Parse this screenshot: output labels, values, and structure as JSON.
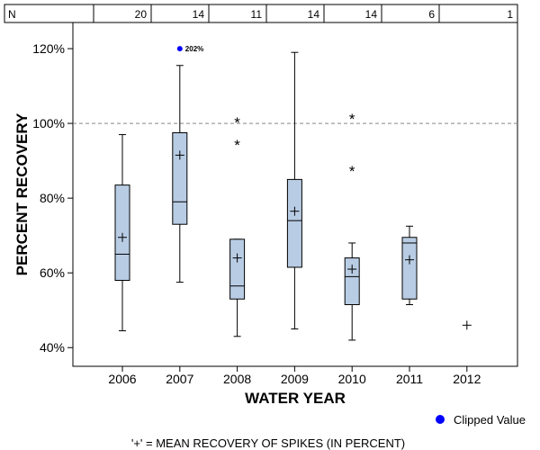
{
  "chart_data": {
    "type": "boxplot",
    "title": "",
    "xlabel": "WATER YEAR",
    "ylabel": "PERCENT RECOVERY",
    "ylim": [
      35,
      127
    ],
    "yticks": [
      40,
      60,
      80,
      100,
      120
    ],
    "ytick_labels": [
      "40%",
      "60%",
      "80%",
      "100%",
      "120%"
    ],
    "reference_line": 100,
    "n_label": "N",
    "categories": [
      "2006",
      "2007",
      "2008",
      "2009",
      "2010",
      "2011",
      "2012"
    ],
    "n": [
      "20",
      "14",
      "11",
      "14",
      "14",
      "6",
      "1"
    ],
    "boxes": [
      {
        "year": "2006",
        "whisker_low": 44.5,
        "q1": 58,
        "median": 65,
        "q3": 83.5,
        "whisker_high": 97,
        "mean": 69.5,
        "outliers": []
      },
      {
        "year": "2007",
        "whisker_low": 57.5,
        "q1": 73,
        "median": 79,
        "q3": 97.5,
        "whisker_high": 115.5,
        "mean": 91.5,
        "outliers": []
      },
      {
        "year": "2008",
        "whisker_low": 43,
        "q1": 53,
        "median": 56.5,
        "q3": 69,
        "whisker_high": 69,
        "mean": 64,
        "outliers": [
          94.5,
          100.5
        ]
      },
      {
        "year": "2009",
        "whisker_low": 45,
        "q1": 61.5,
        "median": 74,
        "q3": 85,
        "whisker_high": 119,
        "mean": 76.5,
        "outliers": []
      },
      {
        "year": "2010",
        "whisker_low": 42,
        "q1": 51.5,
        "median": 59,
        "q3": 64,
        "whisker_high": 68,
        "mean": 61,
        "outliers": [
          87.5,
          101.5
        ]
      },
      {
        "year": "2011",
        "whisker_low": 51.5,
        "q1": 53,
        "median": 68,
        "q3": 69.5,
        "whisker_high": 72.5,
        "mean": 63.5,
        "outliers": []
      },
      {
        "year": "2012",
        "whisker_low": null,
        "q1": null,
        "median": null,
        "q3": null,
        "whisker_high": null,
        "mean": 46,
        "outliers": []
      }
    ],
    "clipped": [
      {
        "year": "2007",
        "plotted_at": 120,
        "label": "202%"
      }
    ],
    "legend": {
      "clipped_label": "Clipped Value",
      "clipped_color": "#0000ff",
      "position": "bottom-right"
    },
    "footnote": "'+' = MEAN RECOVERY OF SPIKES (IN PERCENT)",
    "box_color": "#b8cce4"
  }
}
